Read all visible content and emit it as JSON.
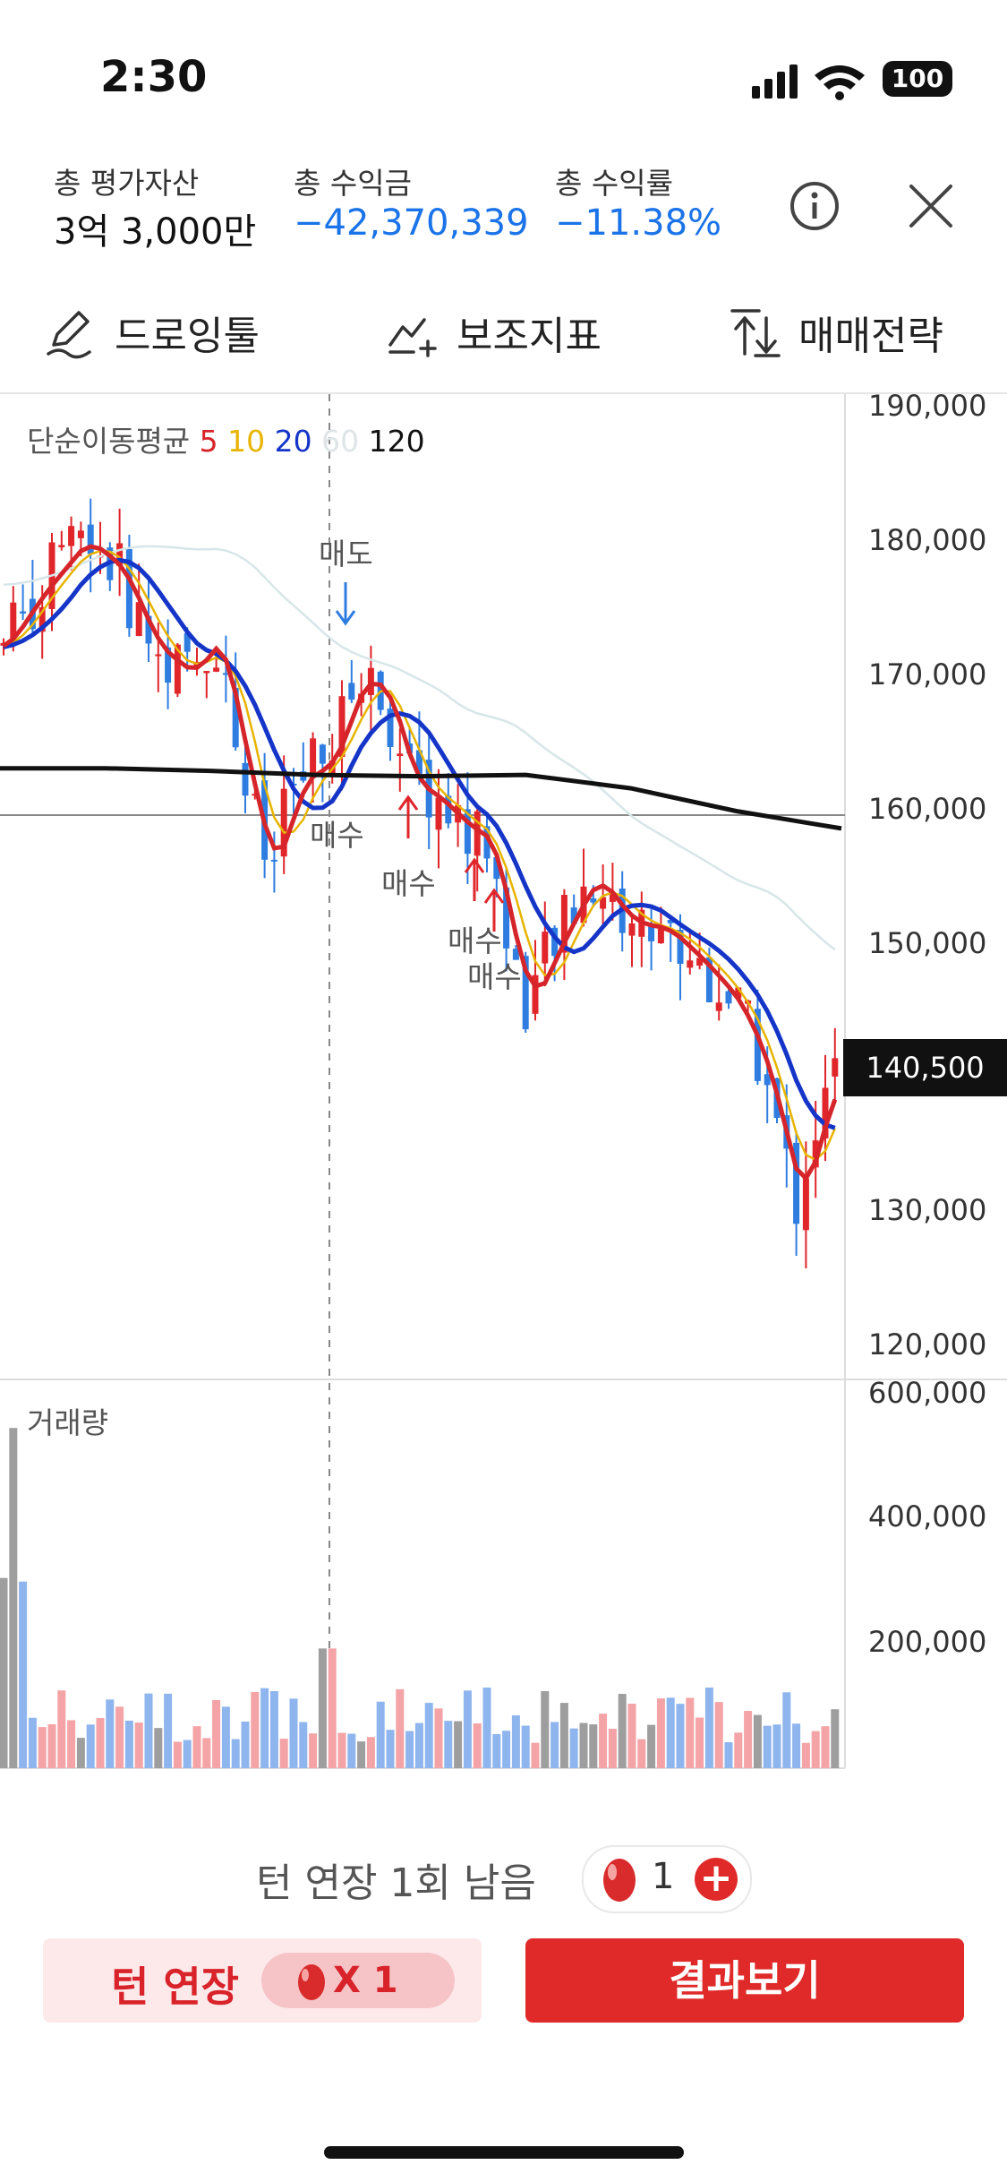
{
  "status_bar": {
    "time": "2:30",
    "battery": "100"
  },
  "header": {
    "total_assets_label": "총 평가자산",
    "total_assets_value": "3억 3,000만",
    "profit_label": "총 수익금",
    "profit_value": "−42,370,339",
    "return_label": "총 수익률",
    "return_value": "−11.38%"
  },
  "tools": {
    "drawing": "드로잉툴",
    "indicator": "보조지표",
    "strategy": "매매전략"
  },
  "chart": {
    "legend": {
      "label": "단순이동평균",
      "ma5": "5",
      "ma10": "10",
      "ma20": "20",
      "ma60": "60",
      "ma120": "120"
    },
    "price_axis": [
      "190,000",
      "180,000",
      "170,000",
      "160,000",
      "150,000",
      "140,000",
      "130,000",
      "120,000"
    ],
    "current_price": "140,500",
    "marks": {
      "sell": "매도",
      "buy": "매수"
    },
    "volume_title": "거래량",
    "volume_axis": [
      "600,000",
      "400,000",
      "200,000"
    ]
  },
  "chart_data": {
    "type": "candlestick",
    "series_ma_colors": {
      "ma5": "#d6252a",
      "ma10": "#e8b400",
      "ma20": "#1535c8",
      "ma60": "#d7e6e8",
      "ma120": "#111111"
    },
    "ylim": [
      118000,
      192000
    ],
    "ma120_level": [
      163000,
      163000,
      162800,
      162500,
      162400,
      162500,
      161500,
      159800,
      158500
    ],
    "reference_line": 159500,
    "current_price": 140500,
    "trade_marks": [
      "매도",
      "매수",
      "매수",
      "매수",
      "매수"
    ]
  },
  "bottom": {
    "turn_info": "턴 연장 1회 남음",
    "egg_count": "1",
    "plus": "+",
    "extend_label": "턴 연장",
    "extend_cost": "X 1",
    "result_label": "결과보기"
  },
  "colors": {
    "accent_red": "#e02a2a",
    "profit_blue": "#1a73e8",
    "candle_up": "#e0262b",
    "candle_down": "#2f7de0"
  }
}
